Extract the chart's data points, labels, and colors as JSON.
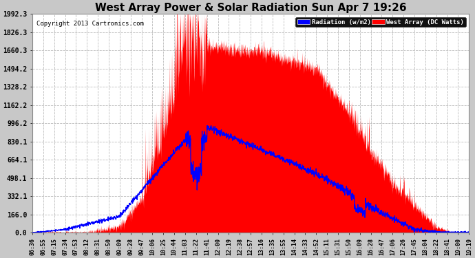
{
  "title": "West Array Power & Solar Radiation Sun Apr 7 19:26",
  "copyright": "Copyright 2013 Cartronics.com",
  "legend_radiation": "Radiation (w/m2)",
  "legend_west": "West Array (DC Watts)",
  "background_color": "#ffffff",
  "plot_bg_color": "#ffffff",
  "fig_bg_color": "#c8c8c8",
  "yticks": [
    0.0,
    166.0,
    332.1,
    498.1,
    664.1,
    830.1,
    996.2,
    1162.2,
    1328.2,
    1494.2,
    1660.3,
    1826.3,
    1992.3
  ],
  "ymax": 1992.3,
  "xtick_labels": [
    "06:36",
    "06:55",
    "07:15",
    "07:34",
    "07:53",
    "08:12",
    "08:31",
    "08:50",
    "09:09",
    "09:28",
    "09:47",
    "10:06",
    "10:25",
    "10:44",
    "11:03",
    "11:22",
    "11:41",
    "12:00",
    "12:19",
    "12:38",
    "12:57",
    "13:16",
    "13:35",
    "13:55",
    "14:14",
    "14:33",
    "14:52",
    "15:11",
    "15:31",
    "15:50",
    "16:09",
    "16:28",
    "16:47",
    "17:06",
    "17:26",
    "17:45",
    "18:04",
    "18:22",
    "18:41",
    "19:00",
    "19:19"
  ],
  "red_color": "#ff0000",
  "blue_color": "#0000ff",
  "grid_color": "#bbbbbb",
  "title_fontsize": 11,
  "tick_fontsize": 6,
  "ytick_fontsize": 7
}
